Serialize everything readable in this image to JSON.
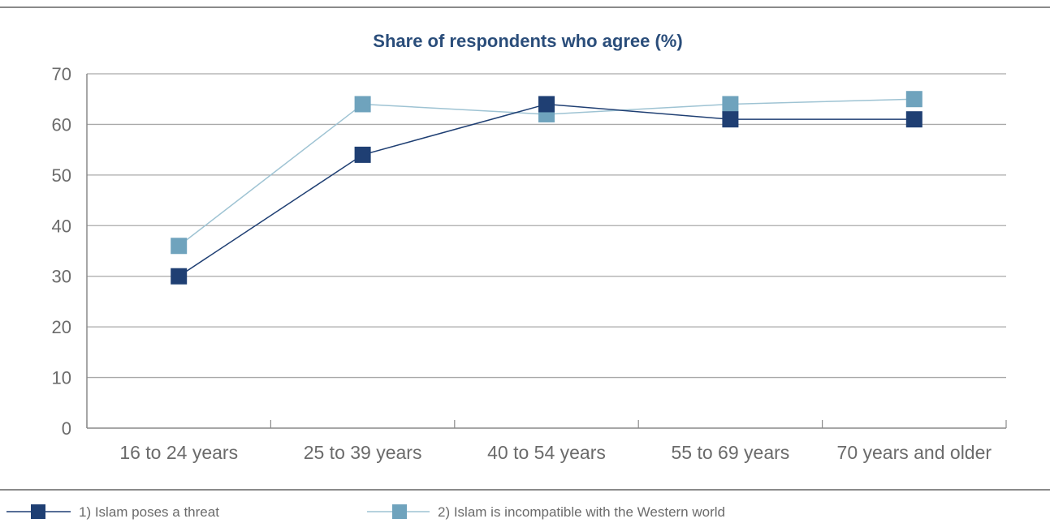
{
  "chart_data": {
    "type": "line",
    "title": "Share of respondents who agree (%)",
    "xlabel": "",
    "ylabel": "",
    "categories": [
      "16 to 24 years",
      "25 to 39 years",
      "40 to 54 years",
      "55 to 69 years",
      "70 years and older"
    ],
    "ylim": [
      0,
      70
    ],
    "yticks": [
      "0",
      "10",
      "20",
      "30",
      "40",
      "50",
      "60",
      "70"
    ],
    "grid": true,
    "legend_position": "bottom",
    "series": [
      {
        "name": "1) Islam poses a threat",
        "values": [
          30,
          54,
          64,
          61,
          61
        ],
        "color": "#1f3f73"
      },
      {
        "name": "2) Islam is incompatible with the Western world",
        "values": [
          36,
          64,
          62,
          64,
          65
        ],
        "color": "#6fa3bd"
      }
    ]
  }
}
